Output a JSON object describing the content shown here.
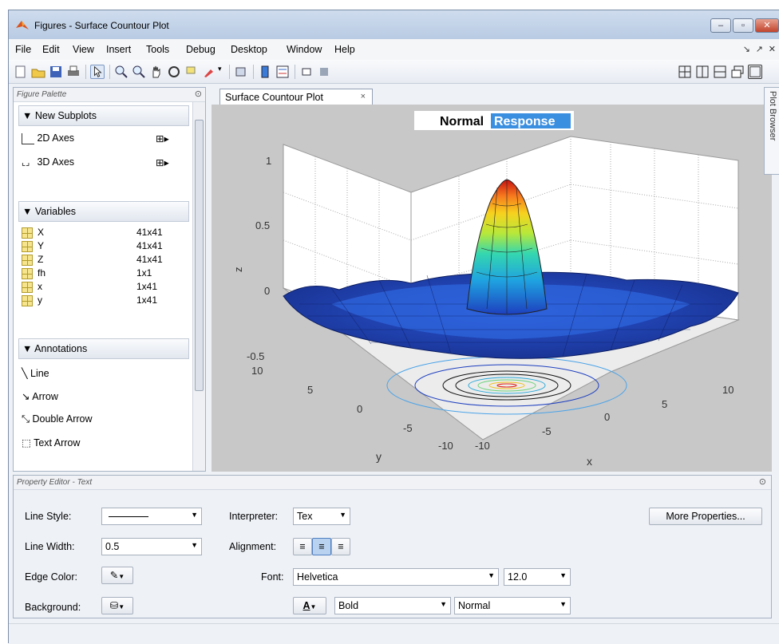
{
  "window": {
    "title": "Figures - Surface Countour Plot"
  },
  "menu": [
    "File",
    "Edit",
    "View",
    "Insert",
    "Tools",
    "Debug",
    "Desktop",
    "Window",
    "Help"
  ],
  "palette": {
    "header": "Figure Palette",
    "new_subplots": "New Subplots",
    "axes": [
      {
        "label": "2D Axes"
      },
      {
        "label": "3D Axes"
      }
    ],
    "variables_header": "Variables",
    "variables": [
      {
        "name": "X",
        "size": "41x41"
      },
      {
        "name": "Y",
        "size": "41x41"
      },
      {
        "name": "Z",
        "size": "41x41"
      },
      {
        "name": "fh",
        "size": "1x1"
      },
      {
        "name": "x",
        "size": "1x41"
      },
      {
        "name": "y",
        "size": "1x41"
      }
    ],
    "annotations_header": "Annotations",
    "annotations": [
      {
        "label": "Line"
      },
      {
        "label": "Arrow"
      },
      {
        "label": "Double Arrow"
      },
      {
        "label": "Text Arrow"
      }
    ]
  },
  "figure_tab": {
    "label": "Surface Countour Plot",
    "close": "×"
  },
  "plot_browser": "Plot Browser",
  "plot": {
    "title_part1": "Normal",
    "title_part2": "Response",
    "z_ticks": [
      "1",
      "0.5",
      "0",
      "-0.5"
    ],
    "y_ticks": [
      "10",
      "5",
      "0",
      "-5",
      "-10"
    ],
    "x_ticks": [
      "-10",
      "-5",
      "0",
      "5",
      "10"
    ],
    "zlabel": "z",
    "ylabel": "y",
    "xlabel": "x"
  },
  "property_editor": {
    "header": "Property Editor - Text",
    "line_style_label": "Line Style:",
    "line_width_label": "Line Width:",
    "line_width_value": "0.5",
    "edge_color_label": "Edge Color:",
    "background_label": "Background:",
    "interpreter_label": "Interpreter:",
    "interpreter_value": "Tex",
    "alignment_label": "Alignment:",
    "font_label": "Font:",
    "font_value": "Helvetica",
    "font_size_value": "12.0",
    "font_weight_value": "Bold",
    "font_angle_value": "Normal",
    "more_properties": "More Properties..."
  },
  "colors": {
    "title_highlight": "#3b8fe0",
    "surface_blue": "#1d3fbf"
  }
}
